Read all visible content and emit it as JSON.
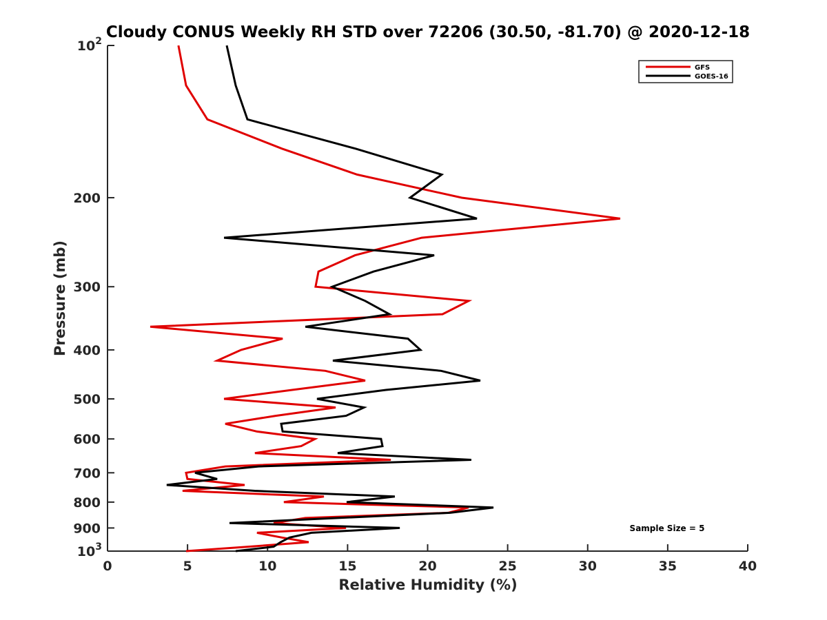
{
  "chart_data": {
    "type": "line",
    "title": "Cloudy CONUS Weekly RH STD over 72206 (30.50, -81.70) @ 2020-12-18",
    "xlabel": "Relative Humidity (%)",
    "ylabel": "Pressure (mb)",
    "xlim": [
      0,
      40
    ],
    "ylim": [
      100,
      1000
    ],
    "yscale": "log",
    "yreversed": true,
    "xticks": [
      0,
      5,
      10,
      15,
      20,
      25,
      30,
      35,
      40
    ],
    "xtick_labels": [
      "0",
      "5",
      "10",
      "15",
      "20",
      "25",
      "30",
      "35",
      "40"
    ],
    "yticks": [
      100,
      200,
      300,
      400,
      500,
      600,
      700,
      800,
      900,
      1000
    ],
    "ytick_labels": [
      "10^2",
      "200",
      "300",
      "400",
      "500",
      "600",
      "700",
      "800",
      "900",
      "10^3"
    ],
    "grid": false,
    "legend_position": "top-right",
    "annotation": "Sample Size = 5",
    "pressure": [
      100,
      120,
      140,
      160,
      180,
      200,
      220,
      240,
      260,
      280,
      300,
      320,
      340,
      360,
      380,
      400,
      420,
      440,
      460,
      480,
      500,
      520,
      540,
      560,
      580,
      600,
      620,
      640,
      660,
      680,
      700,
      720,
      740,
      760,
      780,
      800,
      820,
      840,
      860,
      880,
      900,
      920,
      940,
      960,
      980,
      1000
    ],
    "series": [
      {
        "name": "GFS",
        "color": "#e00000",
        "values": [
          4.43,
          4.91,
          6.24,
          10.9,
          15.59,
          22.13,
          32.03,
          19.63,
          15.46,
          13.18,
          13.0,
          22.56,
          20.93,
          2.67,
          10.94,
          8.35,
          6.85,
          13.61,
          16.1,
          11.54,
          7.28,
          14.25,
          10.5,
          7.36,
          9.34,
          12.96,
          12.1,
          9.21,
          17.7,
          7.36,
          4.91,
          4.99,
          8.57,
          4.69,
          13.52,
          11.02,
          22.56,
          21.27,
          12.36,
          10.38,
          14.9,
          9.34,
          10.9,
          12.57,
          8.8,
          4.91
        ]
      },
      {
        "name": "GOES-16",
        "color": "#000000",
        "values": [
          7.45,
          8.01,
          8.74,
          15.5,
          20.88,
          18.9,
          23.08,
          7.28,
          20.41,
          16.62,
          14.04,
          16.1,
          17.61,
          12.36,
          18.77,
          19.55,
          14.08,
          20.84,
          23.29,
          17.4,
          13.09,
          16.02,
          14.9,
          10.85,
          10.94,
          17.09,
          17.18,
          14.38,
          22.73,
          9.43,
          5.47,
          6.85,
          3.7,
          9.2,
          17.95,
          14.94,
          24.11,
          21.4,
          14.4,
          7.62,
          18.26,
          12.74,
          11.37,
          10.81,
          10.38,
          8.01
        ]
      }
    ]
  }
}
